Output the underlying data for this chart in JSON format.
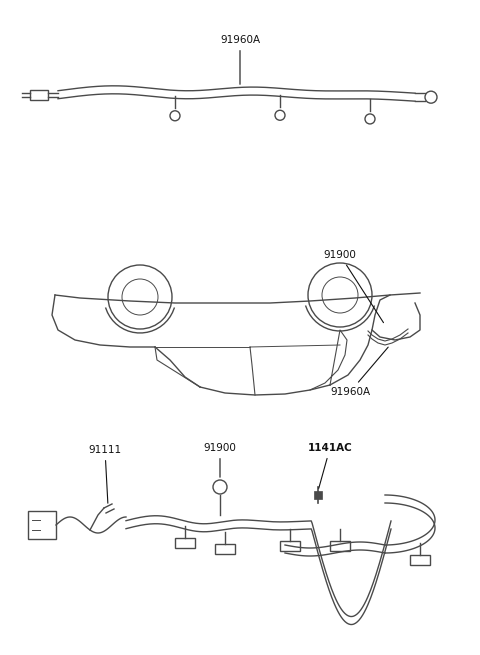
{
  "bg_color": "#ffffff",
  "line_color": "#4a4a4a",
  "text_color": "#111111",
  "section1_label": "91960A",
  "section2_label1": "91960A",
  "section2_label2": "91900",
  "section3_label1": "91111",
  "section3_label2": "91900",
  "section3_label3": "1141AC",
  "font_size": 7.5,
  "lw": 1.0
}
